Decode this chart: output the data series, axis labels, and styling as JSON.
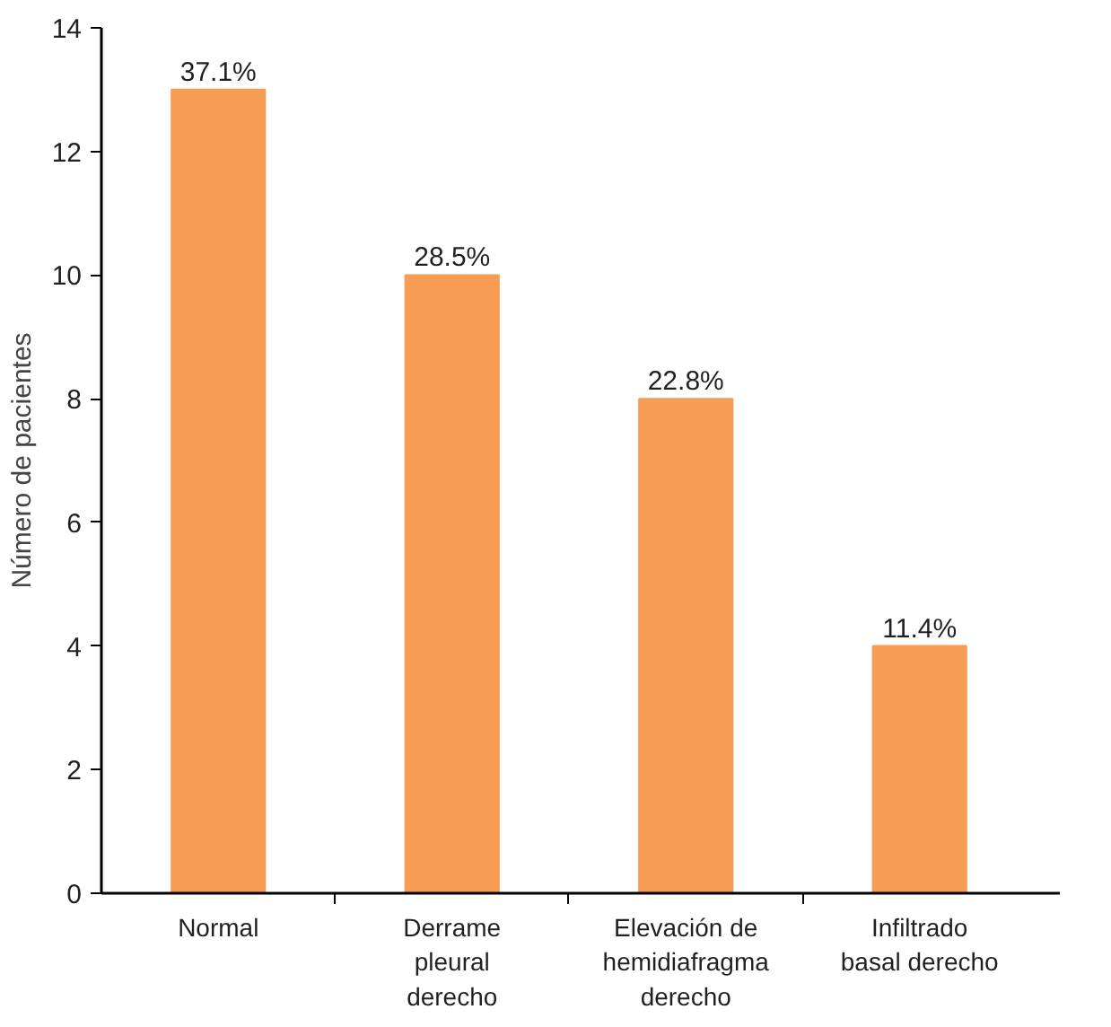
{
  "chart_data": {
    "type": "bar",
    "categories": [
      "Normal",
      "Derrame pleural derecho",
      "Elevación de hemidiafragma derecho",
      "Infiltrado basal derecho"
    ],
    "values": [
      13,
      10,
      8,
      4
    ],
    "annotations": [
      {
        "text": "37.1%",
        "x": "Normal",
        "y": 13
      },
      {
        "text": "28.5%",
        "x": "Derrame pleural derecho",
        "y": 10
      },
      {
        "text": "22.8%",
        "x": "Elevación de hemidiafragma derecho",
        "y": 8
      },
      {
        "text": "11.4%",
        "x": "Infiltrado basal derecho",
        "y": 4
      }
    ],
    "color": "#f79c55",
    "ylabel": "Número de pacientes",
    "ylim": [
      0,
      14
    ],
    "yticks": [
      0,
      2,
      4,
      6,
      8,
      10,
      12,
      14
    ],
    "grid": false
  }
}
